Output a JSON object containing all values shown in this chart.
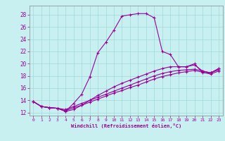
{
  "xlabel": "Windchill (Refroidissement éolien,°C)",
  "background_color": "#c8f0f0",
  "line_color": "#990099",
  "xlim": [
    -0.5,
    23.5
  ],
  "ylim": [
    11.5,
    29.5
  ],
  "yticks": [
    12,
    14,
    16,
    18,
    20,
    22,
    24,
    26,
    28
  ],
  "xticks": [
    0,
    1,
    2,
    3,
    4,
    5,
    6,
    7,
    8,
    9,
    10,
    11,
    12,
    13,
    14,
    15,
    16,
    17,
    18,
    19,
    20,
    21,
    22,
    23
  ],
  "series": [
    {
      "x": [
        0,
        1,
        2,
        3,
        4,
        5,
        6,
        7,
        8,
        9,
        10,
        11,
        12,
        13,
        14,
        15,
        16,
        17,
        18,
        19,
        20,
        21,
        22,
        23
      ],
      "y": [
        13.8,
        13.0,
        12.8,
        12.7,
        12.2,
        13.5,
        15.0,
        17.8,
        21.8,
        23.5,
        25.5,
        27.8,
        28.0,
        28.2,
        28.2,
        27.5,
        22.0,
        21.5,
        19.5,
        19.5,
        20.0,
        18.5,
        18.5,
        19.2
      ]
    },
    {
      "x": [
        0,
        1,
        2,
        3,
        4,
        5,
        6,
        7,
        8,
        9,
        10,
        11,
        12,
        13,
        14,
        15,
        16,
        17,
        18,
        19,
        20,
        21,
        22,
        23
      ],
      "y": [
        13.8,
        13.0,
        12.8,
        12.7,
        12.2,
        12.5,
        13.2,
        14.0,
        14.8,
        15.5,
        16.2,
        16.8,
        17.3,
        17.8,
        18.3,
        18.8,
        19.2,
        19.5,
        19.5,
        19.5,
        19.8,
        18.8,
        18.5,
        19.2
      ]
    },
    {
      "x": [
        0,
        1,
        2,
        3,
        4,
        5,
        6,
        7,
        8,
        9,
        10,
        11,
        12,
        13,
        14,
        15,
        16,
        17,
        18,
        19,
        20,
        21,
        22,
        23
      ],
      "y": [
        13.8,
        13.0,
        12.8,
        12.7,
        12.5,
        13.0,
        13.5,
        14.0,
        14.5,
        15.0,
        15.5,
        16.0,
        16.5,
        17.0,
        17.5,
        18.0,
        18.4,
        18.7,
        18.9,
        19.0,
        19.1,
        18.8,
        18.5,
        19.0
      ]
    },
    {
      "x": [
        0,
        1,
        2,
        3,
        4,
        5,
        6,
        7,
        8,
        9,
        10,
        11,
        12,
        13,
        14,
        15,
        16,
        17,
        18,
        19,
        20,
        21,
        22,
        23
      ],
      "y": [
        13.8,
        13.0,
        12.8,
        12.7,
        12.3,
        12.8,
        13.2,
        13.7,
        14.2,
        14.7,
        15.2,
        15.6,
        16.1,
        16.5,
        17.0,
        17.5,
        17.9,
        18.2,
        18.5,
        18.7,
        18.9,
        18.6,
        18.3,
        18.8
      ]
    }
  ]
}
